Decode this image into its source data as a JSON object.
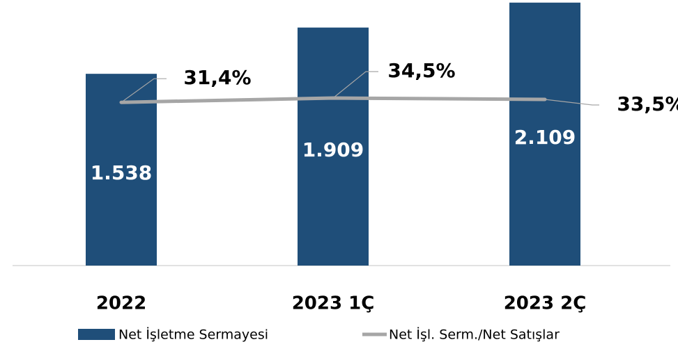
{
  "chart_data": {
    "type": "bar_line",
    "categories": [
      "2022",
      "2023 1Ç",
      "2023 2Ç"
    ],
    "series": [
      {
        "name": "Net İşletme Sermayesi",
        "type": "bar",
        "color": "#1f4e79",
        "values": [
          1538,
          1909,
          2109
        ],
        "value_labels": [
          "1.538",
          "1.909",
          "2.109"
        ]
      },
      {
        "name": "Net İşl. Serm./Net Satışlar",
        "type": "line",
        "axis": "y2",
        "color": "#a6a6a6",
        "values": [
          31.4,
          34.5,
          33.5
        ],
        "value_labels": [
          "31,4%",
          "34,5%",
          "33,5%"
        ]
      }
    ],
    "ylim": [
      0,
      2130
    ],
    "y2lim": [
      -86,
      105
    ],
    "legend": "bottom"
  }
}
